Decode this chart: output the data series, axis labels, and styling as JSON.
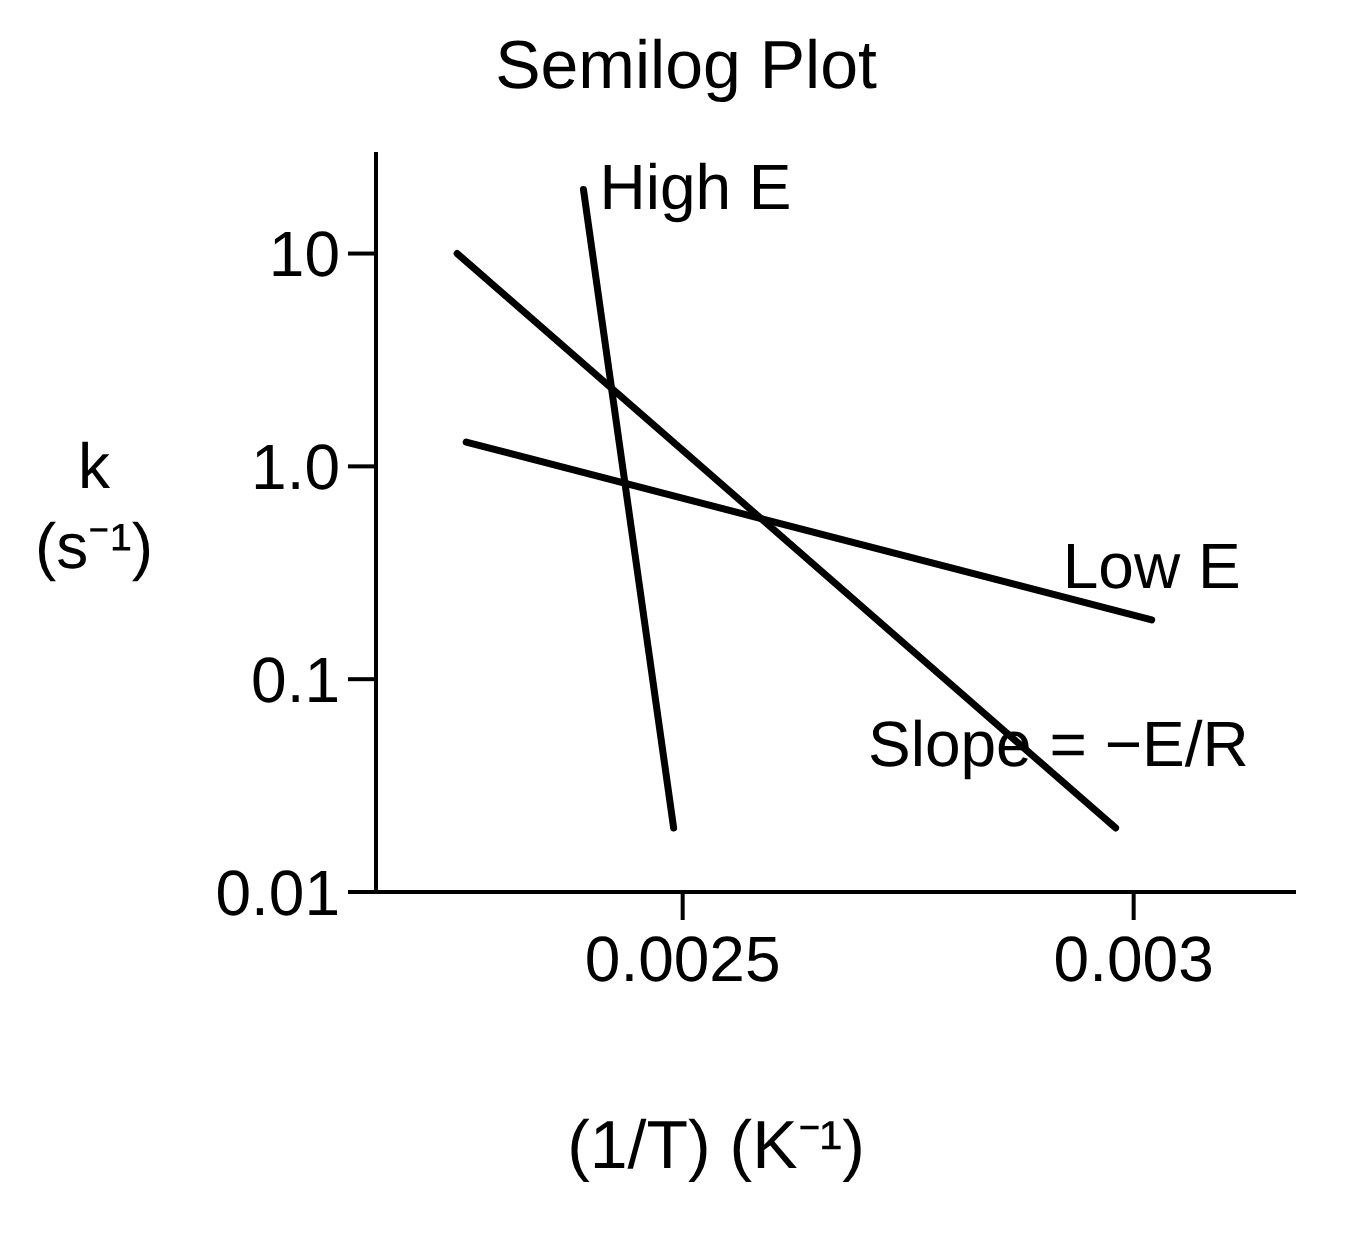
{
  "chart_data": {
    "type": "line",
    "title": "Semilog Plot",
    "xlabel": "(1/T) (K⁻¹)",
    "ylabel": "k (s⁻¹)",
    "log": "y",
    "xlim": [
      0.00216,
      0.00318
    ],
    "xticks": [
      0.0025,
      0.003
    ],
    "ylim": [
      0.01,
      30
    ],
    "yticks": [
      0.01,
      0.1,
      {
        "value": 1,
        "label": "1.0"
      },
      10
    ],
    "series": [
      {
        "name": "High E",
        "color": "#000000",
        "x": [
          0.00239,
          0.00249
        ],
        "values": [
          20,
          0.02
        ]
      },
      {
        "color": "#000000",
        "x": [
          0.00225,
          0.00298
        ],
        "values": [
          10,
          0.02
        ]
      },
      {
        "name": "Low E",
        "color": "#000000",
        "x": [
          0.00226,
          0.00302
        ],
        "values": [
          1.3,
          0.19
        ]
      }
    ],
    "annotations": [
      "Slope = −E/R"
    ]
  }
}
